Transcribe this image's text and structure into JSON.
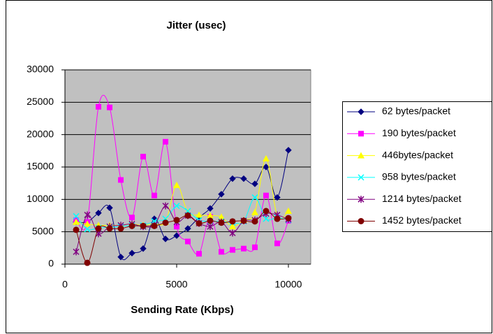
{
  "chart_data": {
    "type": "line",
    "title": "Jitter (usec)",
    "xlabel": "Sending Rate (Kbps)",
    "x": [
      500,
      1000,
      1500,
      2000,
      2500,
      3000,
      3500,
      4000,
      4500,
      5000,
      5500,
      6000,
      6500,
      7000,
      7500,
      8000,
      8500,
      9000,
      9500,
      10000
    ],
    "series": [
      {
        "name": "62 bytes/packet",
        "color": "#000080",
        "marker": "diamond",
        "values": [
          6500,
          6500,
          7900,
          8700,
          1100,
          1700,
          2400,
          7000,
          3900,
          4400,
          5500,
          7200,
          8600,
          10800,
          13200,
          13200,
          12400,
          15000,
          10300,
          17600
        ]
      },
      {
        "name": "190 bytes/packet",
        "color": "#ff00ff",
        "marker": "square",
        "values": [
          6800,
          6500,
          24300,
          24200,
          13000,
          7200,
          16600,
          10600,
          18900,
          5800,
          3500,
          1600,
          7300,
          1900,
          2200,
          2400,
          2600,
          10600,
          3200,
          6700
        ]
      },
      {
        "name": "446bytes/packet",
        "color": "#ffff00",
        "marker": "triangle",
        "values": [
          6500,
          6200,
          6000,
          6000,
          6000,
          6200,
          6000,
          6300,
          6500,
          12200,
          8000,
          7600,
          7500,
          7300,
          5800,
          6800,
          8000,
          16300,
          7400,
          8200
        ]
      },
      {
        "name": "958 bytes/packet",
        "color": "#00ffff",
        "marker": "x",
        "values": [
          7400,
          5400,
          5600,
          5700,
          5800,
          6000,
          6000,
          6600,
          7000,
          9000,
          8200,
          6800,
          6600,
          6600,
          6400,
          6600,
          10300,
          7000,
          7200,
          6800
        ]
      },
      {
        "name": "1214 bytes/packet",
        "color": "#800080",
        "marker": "star",
        "values": [
          1900,
          7600,
          4700,
          5800,
          6000,
          6200,
          5800,
          6000,
          9000,
          6500,
          7500,
          6300,
          5800,
          6500,
          4800,
          6700,
          6800,
          7800,
          7600,
          6900
        ]
      },
      {
        "name": "1452 bytes/packet",
        "color": "#800000",
        "marker": "circle",
        "values": [
          5300,
          200,
          5500,
          5500,
          5500,
          5900,
          5900,
          5900,
          6400,
          6800,
          7500,
          6300,
          6700,
          6400,
          6600,
          6700,
          6600,
          8200,
          7000,
          7100
        ]
      }
    ],
    "xlim": [
      0,
      11000
    ],
    "xticks": [
      0,
      5000,
      10000
    ],
    "ylim": [
      0,
      30000
    ],
    "yticks": [
      0,
      5000,
      10000,
      15000,
      20000,
      25000,
      30000
    ],
    "grid": true,
    "legend": "right",
    "plot_background": "#c0c0c0"
  }
}
